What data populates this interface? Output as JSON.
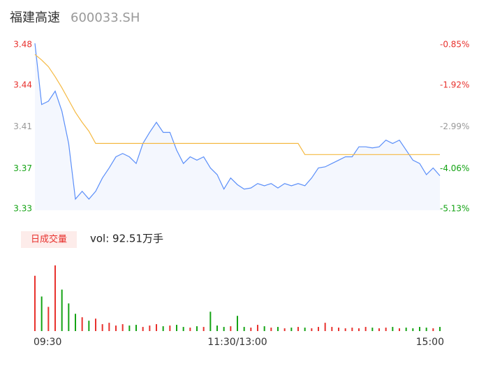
{
  "header": {
    "name": "福建高速",
    "code": "600033.SH"
  },
  "chart_data": {
    "type": "line",
    "x": [
      0,
      4,
      8,
      12,
      16,
      20,
      24,
      28,
      32,
      36,
      40,
      44,
      48,
      52,
      56,
      60,
      64,
      68,
      72,
      76,
      80,
      84,
      88,
      92,
      96,
      100,
      104,
      108,
      112,
      116,
      120,
      124,
      128,
      132,
      136,
      140,
      144,
      148,
      152,
      156,
      160,
      164,
      168,
      172,
      176,
      180,
      184,
      188,
      192,
      196,
      200,
      204,
      208,
      212,
      216,
      220,
      224,
      228,
      232,
      236,
      240
    ],
    "xlim": [
      0,
      240
    ],
    "xticks": [
      {
        "value": 0,
        "label": "09:30"
      },
      {
        "value": 120,
        "label": "11:30/13:00"
      },
      {
        "value": 240,
        "label": "15:00"
      }
    ],
    "ylim": [
      3.33,
      3.48
    ],
    "yticks": [
      3.48,
      {
        "value": 3.4425,
        "label": "3.44"
      },
      {
        "value": 3.405,
        "label": "3.41"
      },
      {
        "value": 3.3675,
        "label": "3.37"
      },
      3.33
    ],
    "y2lim": [
      -5.13,
      -0.85
    ],
    "y2ticks": [
      {
        "value": -0.85,
        "label": "-0.85%"
      },
      {
        "value": -1.92,
        "label": "-1.92%"
      },
      {
        "value": -2.99,
        "label": "-2.99%"
      },
      {
        "value": -4.06,
        "label": "-4.06%"
      },
      {
        "value": -5.13,
        "label": "-5.13%"
      }
    ],
    "up_color": "#e8312d",
    "down_color": "#14a314",
    "flat_color": "#999999",
    "area_color": "#f4f7fe",
    "series": [
      {
        "color": "#5b8ff9",
        "values": [
          3.48,
          3.425,
          3.428,
          3.437,
          3.419,
          3.39,
          3.34,
          3.347,
          3.34,
          3.347,
          3.359,
          3.368,
          3.378,
          3.381,
          3.378,
          3.372,
          3.39,
          3.4,
          3.409,
          3.4,
          3.4,
          3.384,
          3.372,
          3.378,
          3.375,
          3.378,
          3.368,
          3.362,
          3.349,
          3.359,
          3.353,
          3.349,
          3.35,
          3.354,
          3.352,
          3.354,
          3.35,
          3.354,
          3.352,
          3.354,
          3.352,
          3.359,
          3.368,
          3.369,
          3.372,
          3.375,
          3.378,
          3.378,
          3.387,
          3.387,
          3.386,
          3.387,
          3.393,
          3.39,
          3.393,
          3.384,
          3.375,
          3.372,
          3.362,
          3.368,
          3.361
        ]
      },
      {
        "color": "#f5b942",
        "values": [
          3.47,
          3.465,
          3.459,
          3.45,
          3.44,
          3.429,
          3.418,
          3.409,
          3.401,
          3.39,
          3.39,
          3.39,
          3.39,
          3.39,
          3.39,
          3.39,
          3.39,
          3.39,
          3.39,
          3.39,
          3.39,
          3.39,
          3.39,
          3.39,
          3.39,
          3.39,
          3.39,
          3.39,
          3.39,
          3.39,
          3.39,
          3.39,
          3.39,
          3.39,
          3.39,
          3.39,
          3.39,
          3.39,
          3.39,
          3.39,
          3.38,
          3.38,
          3.38,
          3.38,
          3.38,
          3.38,
          3.38,
          3.38,
          3.38,
          3.38,
          3.38,
          3.38,
          3.38,
          3.38,
          3.38,
          3.38,
          3.38,
          3.38,
          3.38,
          3.38,
          3.38
        ]
      }
    ],
    "volume": {
      "label": "日成交量",
      "summary": "vol: 92.51万手",
      "vlim": [
        0,
        100
      ],
      "values": [
        80,
        50,
        35,
        95,
        60,
        40,
        25,
        20,
        15,
        18,
        10,
        12,
        8,
        10,
        8,
        9,
        6,
        8,
        10,
        7,
        8,
        9,
        6,
        5,
        7,
        6,
        28,
        8,
        6,
        7,
        22,
        6,
        5,
        9,
        7,
        5,
        6,
        4,
        5,
        6,
        5,
        4,
        6,
        12,
        6,
        5,
        4,
        5,
        4,
        6,
        5,
        4,
        5,
        6,
        4,
        5,
        4,
        6,
        5,
        4,
        6
      ]
    }
  }
}
